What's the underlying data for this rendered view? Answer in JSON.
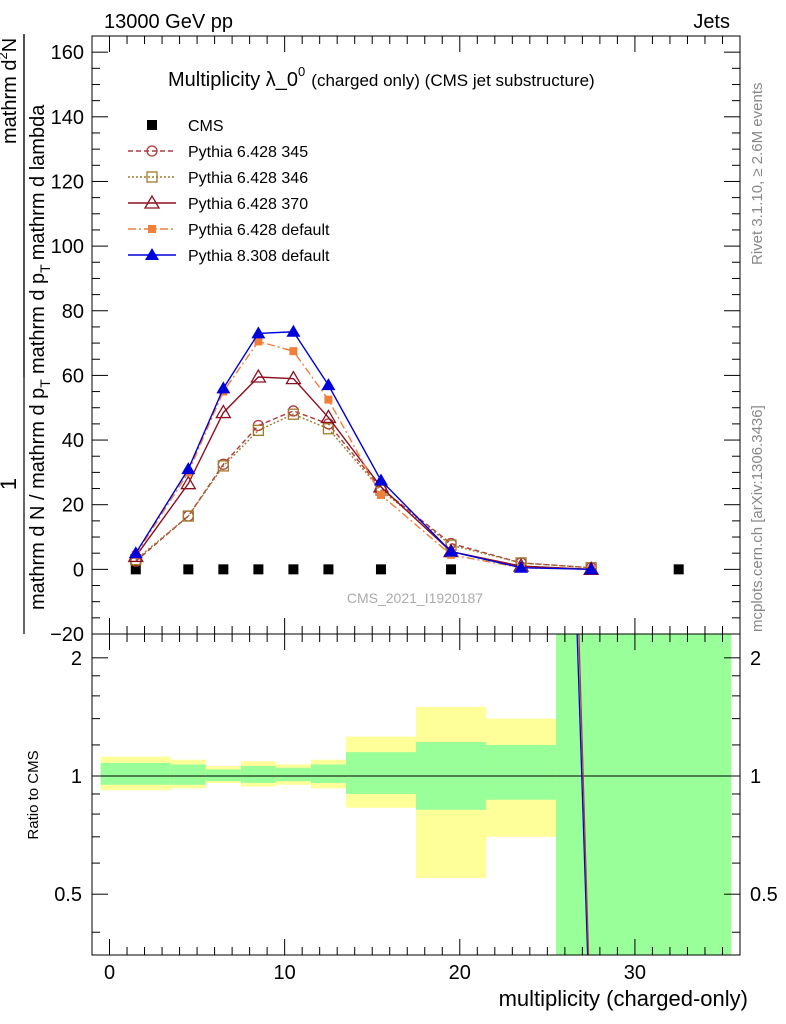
{
  "header": {
    "energy_label": "13000 GeV pp",
    "category_label": "Jets",
    "side_label_top": "Rivet 3.1.10, ≥ 2.6M events",
    "side_label_bottom": "mcplots.cern.ch [arXiv:1306.3436]",
    "watermark": "CMS_2021_I1920187"
  },
  "chart_data": [
    {
      "type": "line",
      "title_main": "Multiplicity λ_0",
      "title_sup": "0",
      "title_suffix": "(charged only) (CMS jet substructure)",
      "ylabel_parts": {
        "frac_one": "1",
        "denominator": "mathrm d N / mathrm d p",
        "denominator_sub": "T",
        "num_top": "mathrm d",
        "num_top_sup": "2",
        "num_n": "N",
        "num_bottom": "mathrm d p",
        "num_bottom_sub": "T",
        "num_bottom_tail": "mathrm d lambda"
      },
      "xlim": [
        -1,
        36
      ],
      "ylim": [
        -20,
        165
      ],
      "yticks": [
        -20,
        0,
        20,
        40,
        60,
        80,
        100,
        120,
        140,
        160
      ],
      "series": [
        {
          "name": "CMS",
          "color": "#000000",
          "marker": "square-filled",
          "line": "none",
          "x": [
            1.5,
            4.5,
            6.5,
            8.5,
            10.5,
            12.5,
            15.5,
            19.5,
            32.5
          ],
          "y": [
            0,
            0,
            0,
            0,
            0,
            0,
            0,
            0,
            0
          ]
        },
        {
          "name": "Pythia 6.428 345",
          "color": "#b0393e",
          "marker": "circle-open",
          "line": "dashed",
          "x": [
            1.5,
            4.5,
            6.5,
            8.5,
            10.5,
            12.5,
            15.5,
            19.5,
            23.5,
            27.5
          ],
          "y": [
            2.5,
            16.5,
            32.5,
            44.5,
            49,
            45,
            25,
            8,
            2,
            0.5
          ]
        },
        {
          "name": "Pythia 6.428 346",
          "color": "#a07a2c",
          "marker": "square-open",
          "line": "dotted",
          "x": [
            1.5,
            4.5,
            6.5,
            8.5,
            10.5,
            12.5,
            15.5,
            19.5,
            23.5,
            27.5
          ],
          "y": [
            3,
            16.5,
            32,
            43,
            48,
            43.5,
            24.5,
            7.5,
            2,
            0.5
          ]
        },
        {
          "name": "Pythia 6.428 370",
          "color": "#8c1020",
          "marker": "triangle-open",
          "line": "solid",
          "x": [
            1.5,
            4.5,
            6.5,
            8.5,
            10.5,
            12.5,
            15.5,
            19.5,
            23.5,
            27.5
          ],
          "y": [
            4,
            26.5,
            48.5,
            59.5,
            59,
            47,
            25.5,
            5.5,
            1,
            0
          ]
        },
        {
          "name": "Pythia 6.428 default",
          "color": "#f07f3a",
          "marker": "square-filled-small",
          "line": "dashdot",
          "x": [
            1.5,
            4.5,
            6.5,
            8.5,
            10.5,
            12.5,
            15.5,
            19.5,
            23.5,
            27.5
          ],
          "y": [
            4.5,
            30,
            55,
            70.5,
            67.5,
            52.5,
            23,
            4.5,
            0.5,
            0
          ]
        },
        {
          "name": "Pythia 8.308 default",
          "color": "#0000dd",
          "marker": "triangle-filled",
          "line": "solid",
          "x": [
            1.5,
            4.5,
            6.5,
            8.5,
            10.5,
            12.5,
            15.5,
            19.5,
            23.5,
            27.5
          ],
          "y": [
            5,
            31,
            56,
            73,
            73.5,
            57,
            27.5,
            5.5,
            0.5,
            0
          ]
        }
      ]
    },
    {
      "type": "line",
      "ylabel": "Ratio to CMS",
      "xlabel": "multiplicity (charged-only)",
      "xlim": [
        -1,
        36
      ],
      "ylim": [
        0.35,
        2.3
      ],
      "xticks": [
        0,
        10,
        20,
        30
      ],
      "yticks_major": [
        0.5,
        1,
        2
      ],
      "reference_line": 1,
      "uncertainty_bands": [
        {
          "x0": -0.5,
          "x1": 3.5,
          "yellow": [
            0.92,
            1.12
          ],
          "green": [
            0.95,
            1.08
          ]
        },
        {
          "x0": 3.5,
          "x1": 5.5,
          "yellow": [
            0.93,
            1.1
          ],
          "green": [
            0.95,
            1.07
          ]
        },
        {
          "x0": 5.5,
          "x1": 7.5,
          "yellow": [
            0.96,
            1.06
          ],
          "green": [
            0.97,
            1.04
          ]
        },
        {
          "x0": 7.5,
          "x1": 9.5,
          "yellow": [
            0.94,
            1.09
          ],
          "green": [
            0.96,
            1.06
          ]
        },
        {
          "x0": 9.5,
          "x1": 11.5,
          "yellow": [
            0.95,
            1.07
          ],
          "green": [
            0.97,
            1.05
          ]
        },
        {
          "x0": 11.5,
          "x1": 13.5,
          "yellow": [
            0.93,
            1.1
          ],
          "green": [
            0.96,
            1.07
          ]
        },
        {
          "x0": 13.5,
          "x1": 17.5,
          "yellow": [
            0.83,
            1.26
          ],
          "green": [
            0.9,
            1.15
          ]
        },
        {
          "x0": 17.5,
          "x1": 21.5,
          "yellow": [
            0.55,
            1.5
          ],
          "green": [
            0.82,
            1.22
          ]
        },
        {
          "x0": 21.5,
          "x1": 25.5,
          "yellow": [
            0.7,
            1.4
          ],
          "green": [
            0.87,
            1.2
          ]
        },
        {
          "x0": 25.5,
          "x1": 35.5,
          "yellow": [
            0.35,
            2.3
          ],
          "green": [
            0.35,
            2.3
          ]
        }
      ],
      "ratio_lines": [
        {
          "color": "#0000dd",
          "x": [
            26.7,
            27.3
          ],
          "y": [
            2.3,
            0.35
          ]
        },
        {
          "color": "#b0393e",
          "x": [
            26.8,
            27.35
          ],
          "y": [
            2.3,
            0.35
          ]
        }
      ]
    }
  ]
}
